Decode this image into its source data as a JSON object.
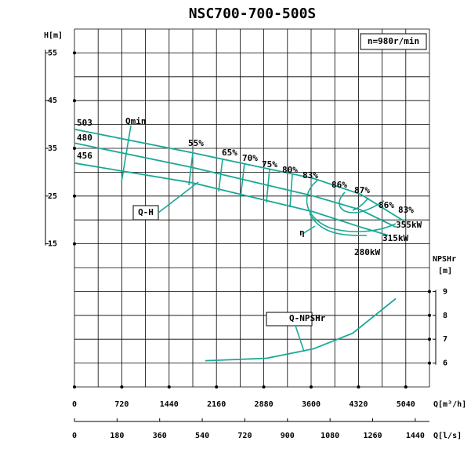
{
  "chart_data": {
    "type": "line",
    "title": "NSC700-700-500S",
    "speed_label": "n=980r/min",
    "x_label": "Q[m³/h]",
    "x2_label": "Q[l/s]",
    "y_label": "H[m]",
    "y2_label": [
      "NPSHr",
      "[m]"
    ],
    "xlim": [
      0,
      5400
    ],
    "xticks": [
      0,
      720,
      1440,
      2160,
      2880,
      3600,
      4320,
      5040
    ],
    "x_grid": [
      0,
      360,
      720,
      1080,
      1440,
      1800,
      2160,
      2520,
      2880,
      3240,
      3600,
      3960,
      4320,
      4680,
      5040,
      5400
    ],
    "x2lim": [
      0,
      1500
    ],
    "x2ticks": [
      0,
      180,
      360,
      540,
      720,
      900,
      1080,
      1260,
      1440
    ],
    "ylim": [
      -15,
      60
    ],
    "yticks": [
      15,
      25,
      35,
      45,
      55
    ],
    "y_grid": [
      -15,
      -10,
      -5,
      0,
      5,
      10,
      15,
      20,
      25,
      30,
      35,
      40,
      45,
      50,
      55,
      60
    ],
    "y2lim": [
      5,
      20
    ],
    "y2ticks": [
      6,
      7,
      8,
      9
    ],
    "grid": true,
    "series": [
      {
        "name": "503",
        "color": "#1aa897",
        "x": [
          0,
          1788,
          3636,
          4351,
          5007
        ],
        "values": [
          39.0,
          34.1,
          28.7,
          25.4,
          19.8
        ]
      },
      {
        "name": "480",
        "color": "#1aa897",
        "x": [
          0,
          1788,
          3636,
          4351,
          4887
        ],
        "values": [
          36.1,
          31.0,
          25.0,
          22.1,
          18.5
        ]
      },
      {
        "name": "456",
        "color": "#1aa897",
        "x": [
          0,
          1788,
          3636,
          4351,
          4768
        ],
        "values": [
          31.9,
          27.8,
          21.7,
          18.5,
          16.8
        ]
      },
      {
        "name": "Q-NPSHr",
        "color": "#1aa897",
        "axis": "y2",
        "x": [
          1990,
          2920,
          3636,
          4232,
          4887
        ],
        "values": [
          6.1,
          6.2,
          6.6,
          7.25,
          8.7
        ]
      }
    ],
    "annotations": [
      "Qmin",
      "55%",
      "65%",
      "70%",
      "75%",
      "80%",
      "83%",
      "86%",
      "87%",
      "86%",
      "83%",
      "355kW",
      "315kW",
      "280kW",
      "η",
      "Q-H"
    ]
  }
}
